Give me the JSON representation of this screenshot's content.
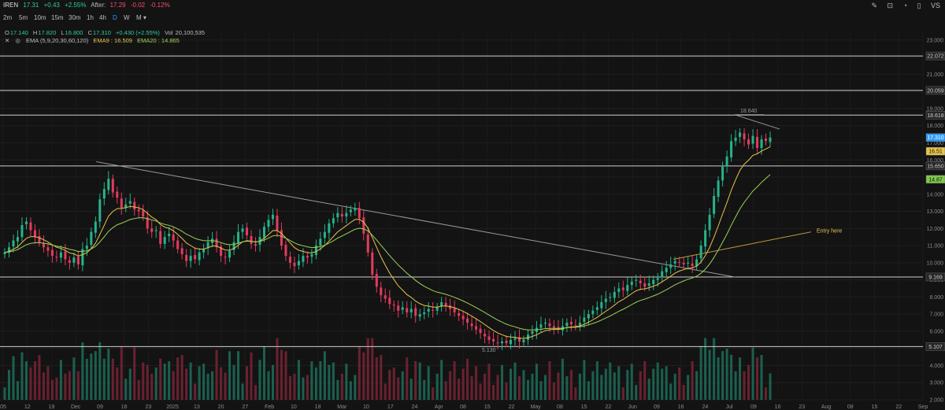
{
  "header": {
    "symbol": "IREN",
    "last": "17.31",
    "change": "+0.43",
    "change_pct": "+2.55%",
    "after_label": "After:",
    "after_price": "17.29",
    "after_change": "-0.02",
    "after_pct": "-0.12%",
    "icons": [
      "pencil-icon",
      "lock-icon",
      "alert-icon",
      "layout-icon",
      "compare-icon"
    ]
  },
  "timeframes": [
    {
      "label": "2m",
      "active": false
    },
    {
      "label": "5m",
      "active": false
    },
    {
      "label": "10m",
      "active": false
    },
    {
      "label": "15m",
      "active": false
    },
    {
      "label": "30m",
      "active": false
    },
    {
      "label": "1h",
      "active": false
    },
    {
      "label": "4h",
      "active": false
    },
    {
      "label": "D",
      "active": true
    },
    {
      "label": "W",
      "active": false
    },
    {
      "label": "M ▾",
      "active": false
    }
  ],
  "ohlc": {
    "o_label": "O",
    "o": "17.140",
    "h_label": "H",
    "h": "17.820",
    "l_label": "L",
    "l": "16.800",
    "c_label": "C",
    "c": "17.310",
    "chg": "+0.430 (+2.55%)",
    "vol_label": "Vol",
    "vol": "20,100,535"
  },
  "ema": {
    "label": "EMA (5,9,20,30,60,120)",
    "ema9": "EMA9 : 16.509",
    "ema20": "EMA20 : 14.865"
  },
  "chart_data": {
    "type": "candlestick",
    "y_ticks": [
      "23.000",
      "22.000",
      "21.000",
      "20.000",
      "19.000",
      "18.000",
      "17.000",
      "16.000",
      "15.000",
      "14.000",
      "13.000",
      "12.000",
      "11.000",
      "10.000",
      "9.000",
      "8.000",
      "7.000",
      "6.000",
      "5.000",
      "4.000",
      "3.000",
      "2.000"
    ],
    "ylim": [
      2.0,
      23.5
    ],
    "x_ticks": [
      "05",
      "12",
      "19",
      "Dec",
      "09",
      "16",
      "23",
      "2025",
      "13",
      "20",
      "27",
      "Feb",
      "10",
      "18",
      "Mar",
      "10",
      "17",
      "24",
      "Apr",
      "08",
      "15",
      "22",
      "May",
      "08",
      "15",
      "22",
      "Jun",
      "09",
      "16",
      "24",
      "Jul",
      "09",
      "16",
      "23",
      "Aug",
      "08",
      "15",
      "22",
      "Sep"
    ],
    "horizontal_levels": [
      22.072,
      20.059,
      18.618,
      15.65,
      9.169,
      5.107
    ],
    "price_tags": [
      {
        "label": "22.072",
        "color": "#262626",
        "text": "#d0d0d0"
      },
      {
        "label": "20.059",
        "color": "#262626",
        "text": "#d0d0d0"
      },
      {
        "label": "18.618",
        "color": "#262626",
        "text": "#d0d0d0"
      },
      {
        "label": "17.310",
        "color": "#2f9bff",
        "text": "#ffffff"
      },
      {
        "label": "16.51",
        "color": "#e6c44c",
        "text": "#111111"
      },
      {
        "label": "15.650",
        "color": "#262626",
        "text": "#d0d0d0"
      },
      {
        "label": "14.87",
        "color": "#7ec84a",
        "text": "#111111"
      },
      {
        "label": "9.169",
        "color": "#262626",
        "text": "#d0d0d0"
      },
      {
        "label": "5.107",
        "color": "#262626",
        "text": "#d0d0d0"
      }
    ],
    "annotations": {
      "high_label": "18.640",
      "low_label": "5.130",
      "entry_label": "Entry here"
    },
    "series": [
      {
        "name": "IREN",
        "closes": [
          10.6,
          10.9,
          11.3,
          11.5,
          12.2,
          12.4,
          11.9,
          11.5,
          11.2,
          10.9,
          10.7,
          10.4,
          10.3,
          10.6,
          10.2,
          10.0,
          10.3,
          9.9,
          10.8,
          11.0,
          11.8,
          12.4,
          13.7,
          14.3,
          14.9,
          14.1,
          13.8,
          13.2,
          13.4,
          13.6,
          13.1,
          13.0,
          12.7,
          12.0,
          11.8,
          11.9,
          11.1,
          11.5,
          11.7,
          11.3,
          10.8,
          10.5,
          10.1,
          10.4,
          10.2,
          10.6,
          10.8,
          11.2,
          11.4,
          10.9,
          10.4,
          10.3,
          10.7,
          11.2,
          11.8,
          12.0,
          11.6,
          11.1,
          11.0,
          11.5,
          12.1,
          12.5,
          12.8,
          11.9,
          11.0,
          10.4,
          10.0,
          9.8,
          10.1,
          10.4,
          10.3,
          10.5,
          11.0,
          11.4,
          11.8,
          12.3,
          12.6,
          12.9,
          12.7,
          12.9,
          13.1,
          13.2,
          12.6,
          11.7,
          10.6,
          9.3,
          8.6,
          8.1,
          7.9,
          7.6,
          7.5,
          7.2,
          7.4,
          7.1,
          7.3,
          6.9,
          7.0,
          7.1,
          7.3,
          7.2,
          7.4,
          7.7,
          7.5,
          7.3,
          7.1,
          6.9,
          6.7,
          6.5,
          6.3,
          6.1,
          5.9,
          5.7,
          5.5,
          5.4,
          5.3,
          5.4,
          5.3,
          5.5,
          5.6,
          5.4,
          5.5,
          5.8,
          6.0,
          6.2,
          6.4,
          6.5,
          6.3,
          6.2,
          6.1,
          6.3,
          6.5,
          6.4,
          6.3,
          6.5,
          6.8,
          7.0,
          7.2,
          7.4,
          7.7,
          7.9,
          8.0,
          8.3,
          8.5,
          8.4,
          8.7,
          8.9,
          9.0,
          8.8,
          8.6,
          8.8,
          9.0,
          9.1,
          9.5,
          9.7,
          9.9,
          10.1,
          10.0,
          9.9,
          10.0,
          9.8,
          10.2,
          11.0,
          11.9,
          12.8,
          13.9,
          14.8,
          15.6,
          16.2,
          17.1,
          17.3,
          17.6,
          17.2,
          16.9,
          17.4,
          16.7,
          17.2,
          17.1,
          17.31
        ]
      }
    ],
    "ema_series": [
      {
        "name": "EMA9",
        "color": "#e6c44c"
      },
      {
        "name": "EMA20",
        "color": "#9bd15a"
      }
    ]
  }
}
